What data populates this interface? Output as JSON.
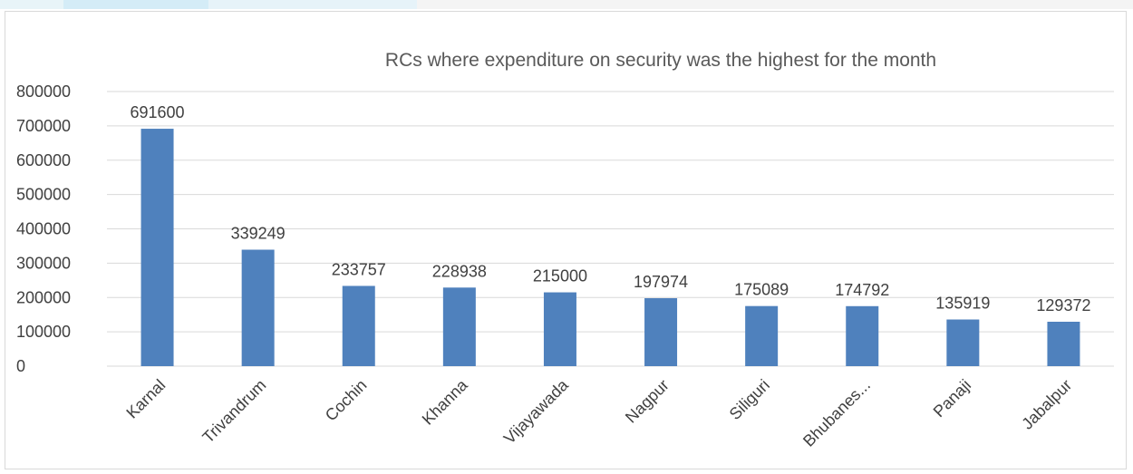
{
  "chart_data": {
    "type": "bar",
    "title": "RCs where expenditure on security was the highest for the month",
    "categories": [
      "Karnal",
      "Trivandrum",
      "Cochin",
      "Khanna",
      "Vijayawada",
      "Nagpur",
      "Siliguri",
      "Bhubanes...",
      "Panaji",
      "Jabalpur"
    ],
    "values": [
      691600,
      339249,
      233757,
      228938,
      215000,
      197974,
      175089,
      174792,
      135919,
      129372
    ],
    "ylim": [
      0,
      800000
    ],
    "yticks": [
      0,
      100000,
      200000,
      300000,
      400000,
      500000,
      600000,
      700000,
      800000
    ],
    "grid": true,
    "legend": "none",
    "bar_color": "#4f81bd",
    "grid_color": "#d9d9d9"
  }
}
